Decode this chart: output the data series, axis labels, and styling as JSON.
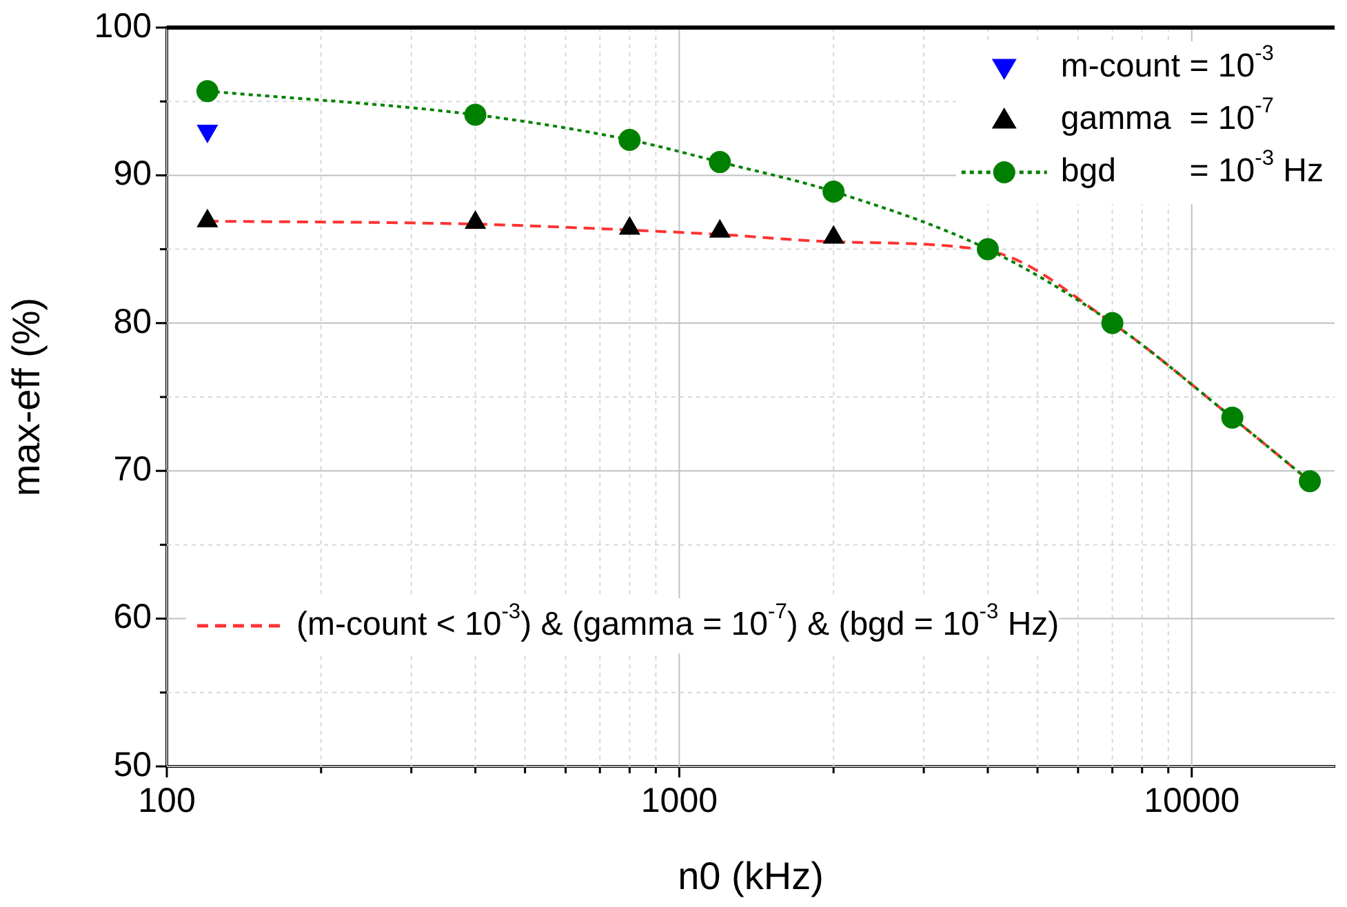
{
  "chart_data": {
    "type": "line",
    "xlabel": "n0 (kHz)",
    "ylabel": "max-eff (%)",
    "log": "x",
    "grid": true,
    "legend": "top right",
    "xlim": [
      100,
      19000
    ],
    "xticks": [
      100,
      {
        "value": 200,
        "label": null
      },
      {
        "value": 300,
        "label": null
      },
      {
        "value": 400,
        "label": null
      },
      {
        "value": 500,
        "label": null
      },
      {
        "value": 600,
        "label": null
      },
      {
        "value": 700,
        "label": null
      },
      {
        "value": 800,
        "label": null
      },
      {
        "value": 900,
        "label": null
      },
      1000,
      {
        "value": 2000,
        "label": null
      },
      {
        "value": 3000,
        "label": null
      },
      {
        "value": 4000,
        "label": null
      },
      {
        "value": 5000,
        "label": null
      },
      {
        "value": 6000,
        "label": null
      },
      {
        "value": 7000,
        "label": null
      },
      {
        "value": 8000,
        "label": null
      },
      {
        "value": 9000,
        "label": null
      },
      10000
    ],
    "ylim": [
      50,
      100
    ],
    "yticks": [
      50,
      {
        "value": 55,
        "label": null
      },
      60,
      {
        "value": 65,
        "label": null
      },
      70,
      {
        "value": 75,
        "label": null
      },
      80,
      {
        "value": 85,
        "label": null
      },
      90,
      {
        "value": 95,
        "label": null
      },
      100
    ],
    "series": [
      {
        "name": "m-count = 10$^{-3}$",
        "type": "scatter",
        "marker": "triangle-down",
        "color": "#0000ff",
        "x": [
          120
        ],
        "values": [
          93.0
        ]
      },
      {
        "name": "gamma  = 10$^{-7}$",
        "type": "scatter",
        "marker": "triangle",
        "color": "#000000",
        "x": [
          120,
          400,
          800,
          1200,
          2000
        ],
        "values": [
          86.9,
          86.8,
          86.4,
          86.2,
          85.8
        ]
      },
      {
        "name": "bgd        = 10$^{-3}$ Hz",
        "type": "line",
        "marker": "circle",
        "line_style": "dotted",
        "color": "#008000",
        "x": [
          120,
          400,
          800,
          1200,
          2000,
          4000,
          7000,
          12000,
          17000
        ],
        "values": [
          95.7,
          94.1,
          92.4,
          90.9,
          88.9,
          85.0,
          80.0,
          73.6,
          69.3
        ]
      },
      {
        "name": "(m-count < 10$^{-3}$) & (gamma = 10$^{-7}$) & (bgd = 10$^{-3}$ Hz)",
        "type": "line",
        "marker": "none",
        "line_style": "dashed",
        "color": "#ff3333",
        "x": [
          120,
          400,
          800,
          1200,
          2000,
          4000,
          7000,
          12000,
          17000
        ],
        "values": [
          86.9,
          86.7,
          86.3,
          86.0,
          85.5,
          84.9,
          80.0,
          73.6,
          69.3
        ]
      }
    ]
  }
}
